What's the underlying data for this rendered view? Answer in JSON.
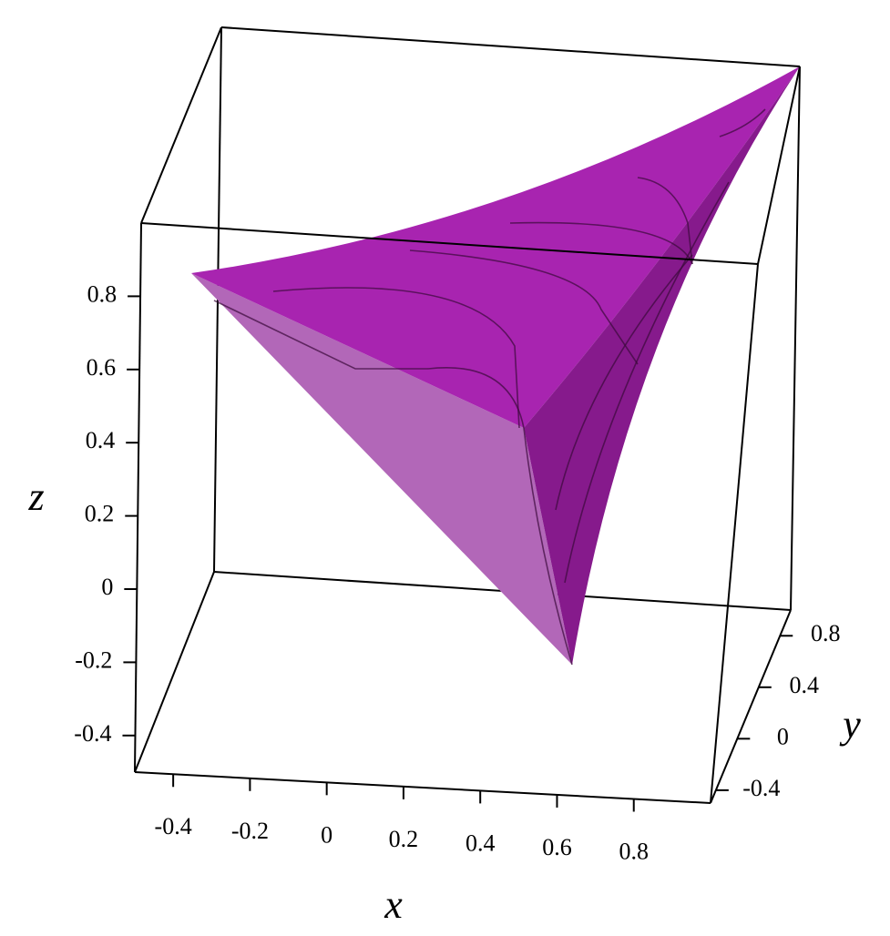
{
  "chart_data": {
    "type": "surface3d",
    "color": "#a82aae",
    "xlabel": "x",
    "ylabel": "y",
    "zlabel": "z",
    "xlim": [
      -0.5,
      1
    ],
    "ylim": [
      -0.5,
      1
    ],
    "zlim": [
      -0.5,
      1
    ],
    "xticks": [
      -0.4,
      -0.2,
      0,
      0.2,
      0.4,
      0.6,
      0.8
    ],
    "yticks": [
      -0.4,
      0,
      0.4,
      0.8
    ],
    "zticks": [
      -0.4,
      -0.2,
      0,
      0.2,
      0.4,
      0.6,
      0.8
    ]
  }
}
